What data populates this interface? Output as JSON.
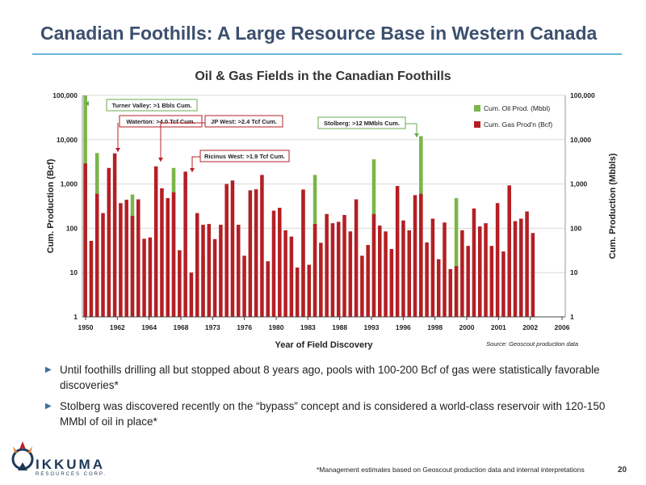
{
  "slide": {
    "title": "Canadian Foothills: A Large Resource Base in Western Canada",
    "page_number": "20",
    "footnote": "*Management estimates based on Geoscout production data and internal interpretations",
    "source_note": "Source: Geoscout production data",
    "logo_text": "IKKUMA",
    "logo_sub": "RESOURCES CORP."
  },
  "bullets": [
    "Until foothills drilling all but stopped about 8 years ago, pools with 100-200 Bcf of gas were statistically favorable discoveries*",
    "Stolberg was discovered recently on the “bypass” concept and is considered a world-class reservoir with 120-150 MMbl of oil in place*"
  ],
  "chart_data": {
    "type": "bar",
    "title": "Oil & Gas Fields in the Canadian Foothills",
    "xlabel": "Year of Field Discovery",
    "ylabel_left": "Cum. Production (Bcf)",
    "ylabel_right": "Cum. Production (Mbbls)",
    "y_scale": "log",
    "ylim": [
      1,
      100000
    ],
    "y_ticks": [
      "1",
      "10",
      "100",
      "1,000",
      "10,000",
      "100,000"
    ],
    "x_tick_labels": [
      "1950",
      "1962",
      "1964",
      "1968",
      "1973",
      "1976",
      "1980",
      "1983",
      "1988",
      "1993",
      "1996",
      "1998",
      "2000",
      "2001",
      "2002",
      "2006"
    ],
    "legend_position": "top-right",
    "grid": true,
    "colors": {
      "oil": "#7ab648",
      "gas": "#b41f24",
      "grid": "#d9d9d9",
      "annotation_red": "#b41f24",
      "annotation_green": "#6aa84f"
    },
    "series": [
      {
        "name": "Cum. Oil Prod. (Mbbl)",
        "key": "oil",
        "values": [
          100000,
          0,
          5000,
          0,
          0,
          0,
          0,
          0,
          580,
          0,
          0,
          0,
          0,
          0,
          0,
          2300,
          0,
          0,
          0,
          0,
          23,
          0,
          0,
          0,
          0,
          0,
          0,
          0,
          0,
          0,
          0,
          0,
          0,
          0,
          0,
          0,
          0,
          700,
          0,
          1600,
          0,
          0,
          0,
          0,
          0,
          0,
          0,
          0,
          0,
          3600,
          0,
          0,
          0,
          0,
          0,
          0,
          0,
          12000,
          0,
          0,
          0,
          0,
          0,
          480,
          0,
          0,
          0,
          0,
          0,
          0,
          0,
          0,
          0,
          0,
          0,
          0,
          0,
          0,
          0,
          0,
          0,
          0
        ]
      },
      {
        "name": "Cum. Gas Prod'n (Bcf)",
        "key": "gas",
        "values": [
          2900,
          52,
          600,
          220,
          2300,
          4900,
          370,
          440,
          190,
          450,
          58,
          62,
          2500,
          800,
          480,
          650,
          32,
          1900,
          10,
          220,
          120,
          125,
          57,
          120,
          1000,
          1200,
          120,
          24,
          720,
          760,
          1600,
          18,
          250,
          290,
          90,
          65,
          13,
          750,
          15,
          125,
          47,
          210,
          130,
          140,
          200,
          85,
          450,
          24,
          42,
          210,
          115,
          85,
          34,
          900,
          150,
          90,
          560,
          600,
          48,
          165,
          20,
          135,
          12,
          14,
          90,
          40,
          280,
          110,
          130,
          40,
          370,
          30,
          930,
          145,
          165,
          240,
          78,
          0,
          0,
          0,
          0,
          0
        ]
      }
    ],
    "annotations": [
      {
        "label": "Turner Valley: >1 Bbls Cum.",
        "color": "green"
      },
      {
        "label": "Waterton: >4.0 Tcf Cum.",
        "color": "red"
      },
      {
        "label": "JP West: >2.4 Tcf Cum.",
        "color": "red"
      },
      {
        "label": "Ricinus West: >1.9 Tcf Cum.",
        "color": "red"
      },
      {
        "label": "Stolberg: >12 MMbls Cum.",
        "color": "green"
      }
    ]
  }
}
